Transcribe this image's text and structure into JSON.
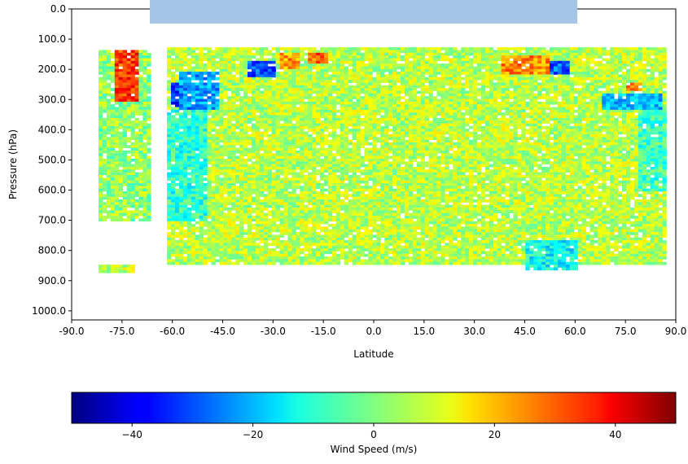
{
  "chart_data": [
    {
      "type": "heatmap",
      "title": "",
      "xlabel": "Latitude",
      "ylabel": "Pressure (hPa)",
      "xlim": [
        -90,
        90
      ],
      "ylim": [
        1030,
        0
      ],
      "y_inverted": true,
      "x_ticks": [
        "-90.0",
        "-75.0",
        "-60.0",
        "-45.0",
        "-30.0",
        "-15.0",
        "0.0",
        "15.0",
        "30.0",
        "45.0",
        "60.0",
        "75.0",
        "90.0"
      ],
      "x_tick_values": [
        -90,
        -75,
        -60,
        -45,
        -30,
        -15,
        0,
        15,
        30,
        45,
        60,
        75,
        90
      ],
      "y_ticks": [
        "0.0",
        "100.0",
        "200.0",
        "300.0",
        "400.0",
        "500.0",
        "600.0",
        "700.0",
        "800.0",
        "900.0",
        "1000.0"
      ],
      "y_tick_values": [
        0,
        100,
        200,
        300,
        400,
        500,
        600,
        700,
        800,
        900,
        1000
      ],
      "grid": false,
      "colormap": "jet",
      "value_range": [
        -50,
        50
      ],
      "background_value": 5,
      "regions": [
        {
          "lat": [
            -83,
            -67
          ],
          "p": [
            130,
            700
          ],
          "value": 2
        },
        {
          "lat": [
            -78,
            -70
          ],
          "p": [
            130,
            300
          ],
          "value": 32
        },
        {
          "lat": [
            -83,
            -72
          ],
          "p": [
            840,
            870
          ],
          "value": 6
        },
        {
          "lat": [
            -62,
            87
          ],
          "p": [
            120,
            840
          ],
          "value": 6
        },
        {
          "lat": [
            -61,
            -55
          ],
          "p": [
            240,
            320
          ],
          "value": -32
        },
        {
          "lat": [
            -58,
            -46
          ],
          "p": [
            200,
            330
          ],
          "value": -22
        },
        {
          "lat": [
            -38,
            -30
          ],
          "p": [
            170,
            220
          ],
          "value": -30
        },
        {
          "lat": [
            -28,
            -22
          ],
          "p": [
            140,
            190
          ],
          "value": 22
        },
        {
          "lat": [
            -20,
            -14
          ],
          "p": [
            140,
            180
          ],
          "value": 28
        },
        {
          "lat": [
            38,
            52
          ],
          "p": [
            150,
            210
          ],
          "value": 24
        },
        {
          "lat": [
            52,
            58
          ],
          "p": [
            170,
            210
          ],
          "value": -28
        },
        {
          "lat": [
            68,
            85
          ],
          "p": [
            280,
            330
          ],
          "value": -18
        },
        {
          "lat": [
            75,
            80
          ],
          "p": [
            240,
            270
          ],
          "value": 28
        },
        {
          "lat": [
            -62,
            -50
          ],
          "p": [
            330,
            700
          ],
          "value": -8
        },
        {
          "lat": [
            78,
            87
          ],
          "p": [
            330,
            600
          ],
          "value": -6
        },
        {
          "lat": [
            45,
            60
          ],
          "p": [
            760,
            860
          ],
          "value": -12
        }
      ]
    },
    {
      "type": "colorbar",
      "label": "Wind Speed (m/s)",
      "range": [
        -50,
        50
      ],
      "ticks": [
        "−40",
        "−20",
        "0",
        "20",
        "40"
      ],
      "tick_values": [
        -40,
        -20,
        0,
        20,
        40
      ],
      "colormap": "jet"
    }
  ],
  "overlay": {
    "color": "#a4c5e8"
  }
}
